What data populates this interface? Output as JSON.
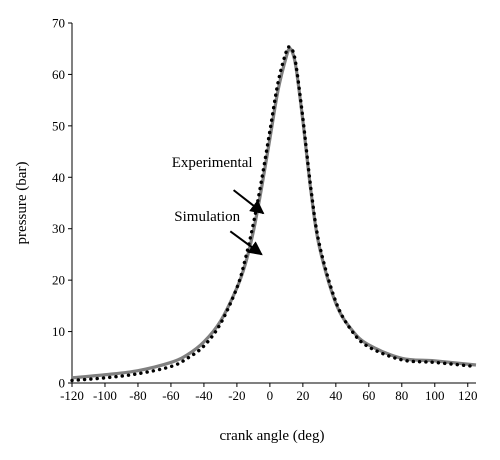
{
  "chart_data": {
    "type": "line",
    "xlabel": "crank angle (deg)",
    "ylabel": "pressure (bar)",
    "xlim": [
      -120,
      125
    ],
    "ylim": [
      0,
      70
    ],
    "x_ticks": [
      -120,
      -100,
      -80,
      -60,
      -40,
      -20,
      0,
      20,
      40,
      60,
      80,
      100,
      120
    ],
    "y_ticks": [
      0,
      10,
      20,
      30,
      40,
      50,
      60,
      70
    ],
    "grid": false,
    "series": [
      {
        "name": "Simulation",
        "style": "solid",
        "color": "#808080",
        "x": [
          -120,
          -100,
          -80,
          -60,
          -50,
          -40,
          -30,
          -20,
          -15,
          -10,
          -5,
          0,
          5,
          10,
          12,
          14,
          16,
          20,
          25,
          30,
          40,
          50,
          60,
          80,
          100,
          125
        ],
        "y": [
          1.0,
          1.6,
          2.4,
          4.0,
          5.5,
          8.0,
          12.0,
          18.5,
          23.0,
          29.5,
          38.0,
          47.5,
          57.0,
          63.5,
          65.0,
          64.0,
          61.0,
          51.0,
          37.0,
          26.5,
          15.5,
          10.2,
          7.4,
          4.8,
          4.3,
          3.5
        ]
      },
      {
        "name": "Experimental",
        "style": "dotted",
        "color": "#000000",
        "x": [
          -120,
          -100,
          -80,
          -60,
          -50,
          -40,
          -30,
          -20,
          -15,
          -10,
          -5,
          0,
          5,
          10,
          12,
          14,
          16,
          20,
          25,
          30,
          40,
          50,
          60,
          80,
          100,
          125
        ],
        "y": [
          0.5,
          1.0,
          1.8,
          3.2,
          4.8,
          7.2,
          11.5,
          18.5,
          24.0,
          31.0,
          39.5,
          49.0,
          58.5,
          64.5,
          65.3,
          64.5,
          61.5,
          51.5,
          37.5,
          27.0,
          15.8,
          10.0,
          7.0,
          4.5,
          4.0,
          3.2
        ]
      }
    ],
    "annotations": [
      {
        "text": "Experimental",
        "target_series": "Experimental",
        "label_at": [
          -35,
          42
        ],
        "arrow_from": [
          -22,
          37.5
        ],
        "arrow_to": [
          -4,
          33
        ]
      },
      {
        "text": "Simulation",
        "target_series": "Simulation",
        "label_at": [
          -38,
          31.5
        ],
        "arrow_from": [
          -24,
          29.5
        ],
        "arrow_to": [
          -5,
          25
        ]
      }
    ]
  }
}
